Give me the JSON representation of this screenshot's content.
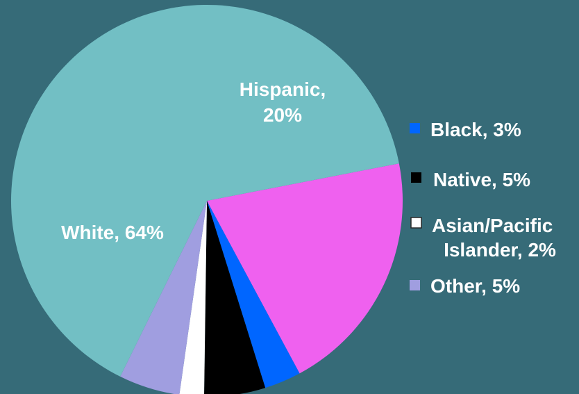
{
  "background_color": "#366b78",
  "chart_data": {
    "type": "pie",
    "title": "",
    "slices": [
      {
        "name": "Hispanic",
        "value": 20,
        "label_line1": "Hispanic,",
        "label_line2": "20%",
        "color": "#ef61ef",
        "label_position": "inside"
      },
      {
        "name": "Black",
        "value": 3,
        "label_line1": "Black, 3%",
        "label_line2": "",
        "color": "#0066ff",
        "label_position": "legend"
      },
      {
        "name": "Native",
        "value": 5,
        "label_line1": "Native, 5%",
        "label_line2": "",
        "color": "#000000",
        "label_position": "legend"
      },
      {
        "name": "Asian/Pacific Islander",
        "value": 2,
        "label_line1": "Asian/Pacific",
        "label_line2": "Islander, 2%",
        "color": "#ffffff",
        "label_position": "legend"
      },
      {
        "name": "Other",
        "value": 5,
        "label_line1": "Other, 5%",
        "label_line2": "",
        "color": "#a09ee0",
        "label_position": "legend"
      },
      {
        "name": "White",
        "value": 64,
        "label_line1": "White, 64%",
        "label_line2": "",
        "color": "#72bfc4",
        "label_position": "inside"
      }
    ],
    "legend_placement": "right"
  }
}
